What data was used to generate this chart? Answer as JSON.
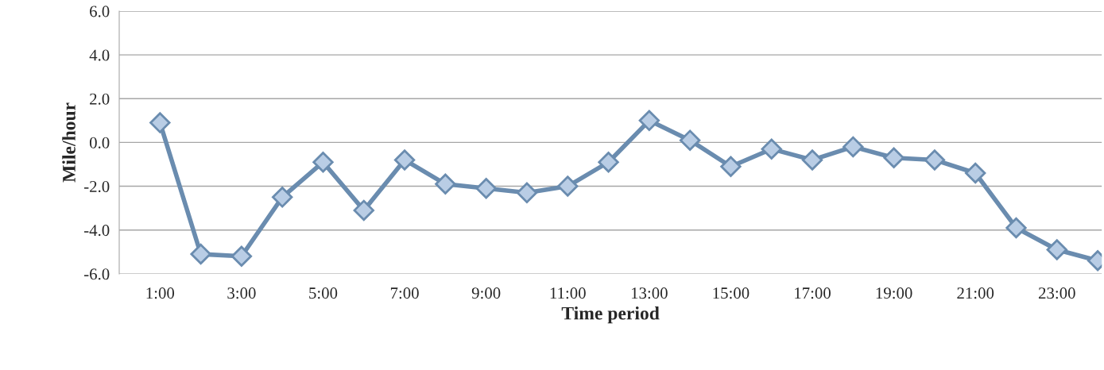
{
  "chart_data": {
    "type": "line",
    "xlabel": "Time period",
    "ylabel": "Mile/hour",
    "categories": [
      "1:00",
      null,
      "3:00",
      null,
      "5:00",
      null,
      "7:00",
      null,
      "9:00",
      null,
      "11:00",
      null,
      "13:00",
      null,
      "15:00",
      null,
      "17:00",
      null,
      "19:00",
      null,
      "21:00",
      null,
      "23:00",
      null
    ],
    "series": [
      {
        "color": "#6a8caf",
        "values": [
          0.9,
          -5.1,
          -5.2,
          -2.5,
          -0.9,
          -3.1,
          -0.8,
          -1.9,
          -2.1,
          -2.3,
          -2.0,
          -0.9,
          1.0,
          0.1,
          -1.1,
          -0.3,
          -0.8,
          -0.2,
          -0.7,
          -0.8,
          -1.4,
          -3.9,
          -4.9,
          -5.4
        ]
      }
    ],
    "ylim": [
      -6,
      6
    ],
    "yticks": [
      {
        "value": -6,
        "label": "-6.0"
      },
      {
        "value": -4,
        "label": "-4.0"
      },
      {
        "value": -2,
        "label": "-2.0"
      },
      {
        "value": 0,
        "label": "0.0"
      },
      {
        "value": 2,
        "label": "2.0"
      },
      {
        "value": 4,
        "label": "4.0"
      },
      {
        "value": 6,
        "label": "6.0"
      }
    ],
    "grid": "y",
    "marker": "diamond",
    "line_style": "solid",
    "legend": false
  }
}
